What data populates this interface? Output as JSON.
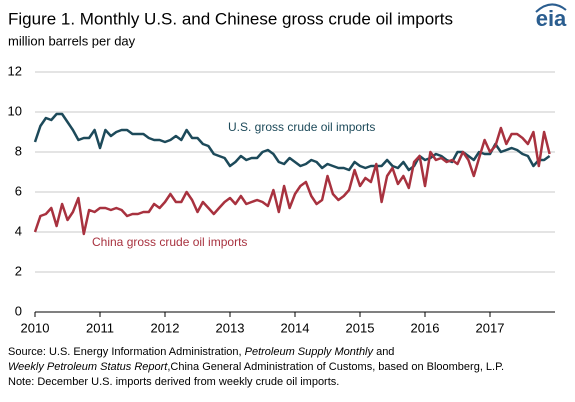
{
  "chart_data": {
    "type": "line",
    "title": "Figure 1. Monthly U.S. and Chinese gross crude oil imports",
    "subtitle": "million barrels per day",
    "logo": "eia",
    "x": [
      2010,
      2010.083,
      2010.167,
      2010.25,
      2010.333,
      2010.417,
      2010.5,
      2010.583,
      2010.667,
      2010.75,
      2010.833,
      2010.917,
      2011,
      2011.083,
      2011.167,
      2011.25,
      2011.333,
      2011.417,
      2011.5,
      2011.583,
      2011.667,
      2011.75,
      2011.833,
      2011.917,
      2012,
      2012.083,
      2012.167,
      2012.25,
      2012.333,
      2012.417,
      2012.5,
      2012.583,
      2012.667,
      2012.75,
      2012.833,
      2012.917,
      2013,
      2013.083,
      2013.167,
      2013.25,
      2013.333,
      2013.417,
      2013.5,
      2013.583,
      2013.667,
      2013.75,
      2013.833,
      2013.917,
      2014,
      2014.083,
      2014.167,
      2014.25,
      2014.333,
      2014.417,
      2014.5,
      2014.583,
      2014.667,
      2014.75,
      2014.833,
      2014.917,
      2015,
      2015.083,
      2015.167,
      2015.25,
      2015.333,
      2015.417,
      2015.5,
      2015.583,
      2015.667,
      2015.75,
      2015.833,
      2015.917,
      2016,
      2016.083,
      2016.167,
      2016.25,
      2016.333,
      2016.417,
      2016.5,
      2016.583,
      2016.667,
      2016.75,
      2016.833,
      2016.917,
      2017,
      2017.083,
      2017.167,
      2017.25,
      2017.333,
      2017.417,
      2017.5,
      2017.583,
      2017.667,
      2017.75,
      2017.833,
      2017.917
    ],
    "series": [
      {
        "name": "U.S. gross crude oil imports",
        "color": "#1d4a5a",
        "values": [
          8.5,
          9.3,
          9.7,
          9.6,
          9.9,
          9.9,
          9.5,
          9.1,
          8.6,
          8.7,
          8.7,
          9.1,
          8.2,
          9.1,
          8.8,
          9.0,
          9.1,
          9.1,
          8.9,
          8.9,
          8.9,
          8.7,
          8.6,
          8.6,
          8.5,
          8.6,
          8.8,
          8.6,
          9.1,
          8.7,
          8.7,
          8.4,
          8.3,
          7.9,
          7.8,
          7.7,
          7.3,
          7.5,
          7.8,
          7.6,
          7.7,
          7.7,
          8.0,
          8.1,
          7.9,
          7.5,
          7.4,
          7.7,
          7.5,
          7.3,
          7.4,
          7.6,
          7.5,
          7.2,
          7.4,
          7.3,
          7.2,
          7.2,
          7.1,
          7.5,
          7.3,
          7.2,
          7.3,
          7.3,
          7.3,
          7.6,
          7.3,
          7.2,
          7.5,
          7.1,
          7.3,
          7.8,
          7.6,
          7.7,
          7.9,
          7.8,
          7.6,
          7.5,
          8.0,
          8.0,
          7.8,
          7.6,
          8.0,
          7.9,
          7.9,
          8.4,
          8.0,
          8.1,
          8.2,
          8.1,
          7.9,
          7.8,
          7.3,
          7.6,
          7.6,
          7.8
        ]
      },
      {
        "name": "China gross crude oil imports",
        "color": "#a8323f",
        "values": [
          4.0,
          4.8,
          4.9,
          5.2,
          4.3,
          5.4,
          4.6,
          5.0,
          5.7,
          3.9,
          5.1,
          5.0,
          5.2,
          5.2,
          5.1,
          5.2,
          5.1,
          4.8,
          4.9,
          4.9,
          5.0,
          5.0,
          5.4,
          5.2,
          5.5,
          5.9,
          5.5,
          5.5,
          6.0,
          5.6,
          5.0,
          5.5,
          5.2,
          4.9,
          5.2,
          5.5,
          5.7,
          5.4,
          5.8,
          5.4,
          5.5,
          5.6,
          5.5,
          5.3,
          6.1,
          5.0,
          6.3,
          5.2,
          5.9,
          6.3,
          6.5,
          5.8,
          5.4,
          5.6,
          6.8,
          5.9,
          5.6,
          5.8,
          6.1,
          7.1,
          6.3,
          6.7,
          6.5,
          7.4,
          5.5,
          6.8,
          7.2,
          6.4,
          6.8,
          6.2,
          7.5,
          7.8,
          6.3,
          8.0,
          7.6,
          7.7,
          7.5,
          7.6,
          7.4,
          8.0,
          7.6,
          6.8,
          7.7,
          8.6,
          8.0,
          8.3,
          9.2,
          8.4,
          8.9,
          8.9,
          8.7,
          8.4,
          9.0,
          7.3,
          9.0,
          7.9
        ]
      }
    ],
    "xlim": [
      2010,
      2018
    ],
    "xticks": [
      2010,
      2011,
      2012,
      2013,
      2014,
      2015,
      2016,
      2017
    ],
    "ylim": [
      0,
      12
    ],
    "yticks": [
      0,
      2,
      4,
      6,
      8,
      10,
      12
    ],
    "grid": true,
    "source": [
      {
        "text": "Source: U.S. Energy Information Administration, ",
        "italic": false
      },
      {
        "text": "Petroleum Supply Monthly",
        "italic": true
      },
      {
        "text": " and ",
        "italic": false
      },
      {
        "text": "Weekly Petroleum Status Report",
        "italic": true
      },
      {
        "text": ",China General Administration of Customs, based on Bloomberg, L.P.",
        "italic": false
      }
    ],
    "note": "Note: December U.S. imports derived from weekly crude oil imports."
  }
}
